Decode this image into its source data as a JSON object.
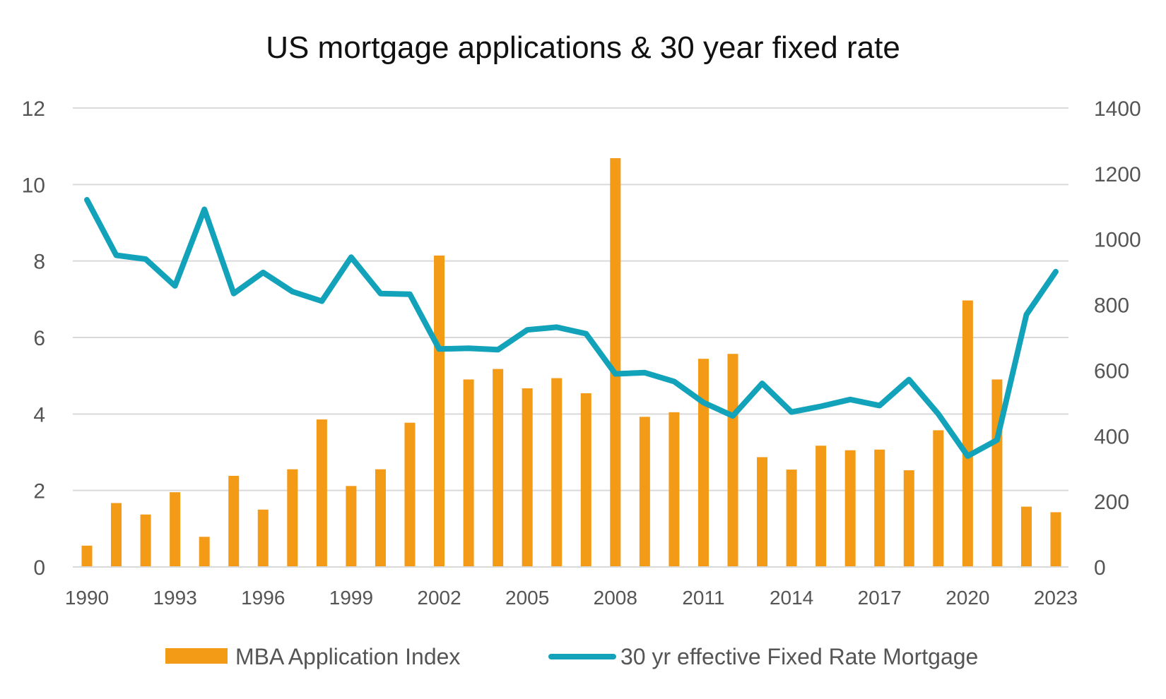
{
  "chart_data": {
    "type": "bar",
    "title": "US mortgage applications & 30 year fixed rate",
    "xlabel": "",
    "ylabel": "",
    "y_left": {
      "min": 0,
      "max": 12,
      "ticks": [
        0,
        2,
        4,
        6,
        8,
        10,
        12
      ]
    },
    "y_right": {
      "min": 0,
      "max": 1400,
      "ticks": [
        0,
        200,
        400,
        600,
        800,
        1000,
        1200,
        1400
      ]
    },
    "grid": true,
    "legend_position": "bottom",
    "x_tick_labels": [
      "1990",
      "1993",
      "1996",
      "1999",
      "2002",
      "2005",
      "2008",
      "2011",
      "2014",
      "2017",
      "2020",
      "2023"
    ],
    "x": [
      1990,
      1991,
      1992,
      1993,
      1994,
      1995,
      1996,
      1997,
      1998,
      1999,
      2000,
      2001,
      2002,
      2003,
      2004,
      2005,
      2006,
      2007,
      2008,
      2009,
      2010,
      2011,
      2012,
      2013,
      2014,
      2015,
      2016,
      2017,
      2018,
      2019,
      2020,
      2021,
      2022,
      2023
    ],
    "series": [
      {
        "name": "MBA Application Index",
        "type": "bar",
        "axis": "right",
        "color": "#F39A16",
        "values": [
          65,
          195,
          160,
          228,
          92,
          278,
          175,
          298,
          450,
          247,
          298,
          440,
          950,
          572,
          604,
          545,
          576,
          530,
          1247,
          458,
          472,
          635,
          650,
          335,
          297,
          370,
          356,
          358,
          295,
          417,
          813,
          572,
          184,
          167
        ]
      },
      {
        "name": "30 yr effective Fixed Rate Mortgage",
        "type": "line",
        "axis": "left",
        "color": "#12A3BB",
        "values": [
          9.6,
          8.15,
          8.05,
          7.35,
          9.35,
          7.15,
          7.7,
          7.2,
          6.95,
          8.1,
          7.15,
          7.13,
          5.7,
          5.72,
          5.68,
          6.2,
          6.27,
          6.1,
          5.05,
          5.08,
          4.85,
          4.3,
          3.95,
          4.8,
          4.05,
          4.2,
          4.38,
          4.22,
          4.9,
          4.0,
          2.9,
          3.32,
          6.6,
          7.72
        ]
      }
    ]
  }
}
